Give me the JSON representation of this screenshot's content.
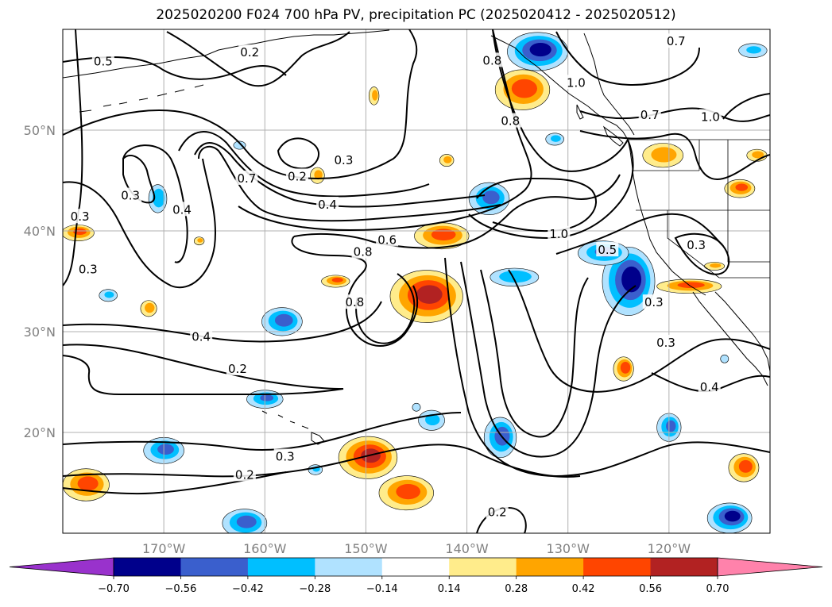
{
  "title": "2025020200 F024 700 hPa PV, precipitation PC (2025020412 - 2025020512)",
  "map": {
    "lon_range": [
      -180,
      -110
    ],
    "lat_range": [
      10,
      60
    ],
    "lon_ticks": [
      {
        "lon": -170,
        "label": "170°W"
      },
      {
        "lon": -160,
        "label": "160°W"
      },
      {
        "lon": -150,
        "label": "150°W"
      },
      {
        "lon": -140,
        "label": "140°W"
      },
      {
        "lon": -130,
        "label": "130°W"
      },
      {
        "lon": -120,
        "label": "120°W"
      }
    ],
    "lat_ticks": [
      {
        "lat": 20,
        "label": "20°N"
      },
      {
        "lat": 30,
        "label": "30°N"
      },
      {
        "lat": 40,
        "label": "40°N"
      },
      {
        "lat": 50,
        "label": "50°N"
      }
    ],
    "grid": true
  },
  "contour_labels": [
    {
      "text": "0.5",
      "lon": -176.0,
      "lat": 56.8
    },
    {
      "text": "0.2",
      "lon": -161.5,
      "lat": 57.7
    },
    {
      "text": "0.3",
      "lon": -173.3,
      "lat": 43.5
    },
    {
      "text": "0.3",
      "lon": -178.3,
      "lat": 41.4
    },
    {
      "text": "0.3",
      "lon": -177.5,
      "lat": 36.2
    },
    {
      "text": "0.7",
      "lon": -161.8,
      "lat": 45.2
    },
    {
      "text": "0.4",
      "lon": -168.2,
      "lat": 42.1
    },
    {
      "text": "0.2",
      "lon": -156.8,
      "lat": 45.4
    },
    {
      "text": "0.3",
      "lon": -152.2,
      "lat": 47.0
    },
    {
      "text": "0.4",
      "lon": -153.8,
      "lat": 42.6
    },
    {
      "text": "0.6",
      "lon": -147.9,
      "lat": 39.1
    },
    {
      "text": "0.8",
      "lon": -150.3,
      "lat": 37.9
    },
    {
      "text": "0.8",
      "lon": -151.1,
      "lat": 32.9
    },
    {
      "text": "0.8",
      "lon": -137.5,
      "lat": 56.9
    },
    {
      "text": "0.8",
      "lon": -135.7,
      "lat": 50.9
    },
    {
      "text": "0.7",
      "lon": -119.3,
      "lat": 58.8
    },
    {
      "text": "1.0",
      "lon": -129.2,
      "lat": 54.7
    },
    {
      "text": "0.7",
      "lon": -121.9,
      "lat": 51.5
    },
    {
      "text": "1.0",
      "lon": -115.9,
      "lat": 51.3
    },
    {
      "text": "1.0",
      "lon": -130.9,
      "lat": 39.7
    },
    {
      "text": "0.5",
      "lon": -126.1,
      "lat": 38.1
    },
    {
      "text": "0.3",
      "lon": -117.3,
      "lat": 38.6
    },
    {
      "text": "0.3",
      "lon": -121.5,
      "lat": 32.9
    },
    {
      "text": "0.4",
      "lon": -166.3,
      "lat": 29.5
    },
    {
      "text": "0.2",
      "lon": -162.7,
      "lat": 26.3
    },
    {
      "text": "0.3",
      "lon": -158.0,
      "lat": 17.6
    },
    {
      "text": "0.3",
      "lon": -120.3,
      "lat": 28.9
    },
    {
      "text": "0.4",
      "lon": -116.0,
      "lat": 24.5
    },
    {
      "text": "0.2",
      "lon": -162.0,
      "lat": 15.8
    },
    {
      "text": "0.2",
      "lon": -137.0,
      "lat": 12.1
    }
  ],
  "colorbar": {
    "levels": [
      -0.7,
      -0.56,
      -0.42,
      -0.28,
      -0.14,
      0.14,
      0.28,
      0.42,
      0.56,
      0.7
    ],
    "tick_labels": [
      "−0.70",
      "−0.56",
      "−0.42",
      "−0.28",
      "−0.14",
      "0.14",
      "0.28",
      "0.42",
      "0.56",
      "0.70"
    ],
    "colors": [
      "#9932cc",
      "#00008b",
      "#3a5fcd",
      "#00bfff",
      "#b0e2ff",
      "#ffffff",
      "#ffec8b",
      "#ffa500",
      "#ff4500",
      "#b22222",
      "#ff82ab"
    ],
    "extend": "both"
  },
  "precip_blobs": [
    {
      "lon": -144.0,
      "lat": 33.5,
      "rlon": 3.6,
      "rlat": 2.6,
      "v": 0.62
    },
    {
      "lon": -142.5,
      "lat": 39.5,
      "rlon": 2.7,
      "rlat": 1.3,
      "v": 0.48
    },
    {
      "lon": -134.5,
      "lat": 54.0,
      "rlon": 2.7,
      "rlat": 2.0,
      "v": 0.5
    },
    {
      "lon": -149.8,
      "lat": 17.5,
      "rlon": 2.9,
      "rlat": 2.1,
      "v": 0.6
    },
    {
      "lon": -146.0,
      "lat": 14.0,
      "rlon": 2.7,
      "rlat": 1.7,
      "v": 0.48
    },
    {
      "lon": -177.7,
      "lat": 14.8,
      "rlon": 2.3,
      "rlat": 1.6,
      "v": 0.48
    },
    {
      "lon": -178.5,
      "lat": 39.8,
      "rlon": 1.6,
      "rlat": 0.8,
      "v": 0.45
    },
    {
      "lon": -118.0,
      "lat": 34.5,
      "rlon": 3.2,
      "rlat": 0.7,
      "v": 0.46
    },
    {
      "lon": -112.6,
      "lat": 16.5,
      "rlon": 1.5,
      "rlat": 1.4,
      "v": 0.48
    },
    {
      "lon": -113.0,
      "lat": 44.2,
      "rlon": 1.5,
      "rlat": 0.9,
      "v": 0.45
    },
    {
      "lon": -124.5,
      "lat": 26.3,
      "rlon": 1.0,
      "rlat": 1.2,
      "v": 0.52
    },
    {
      "lon": -153.0,
      "lat": 35.0,
      "rlon": 1.4,
      "rlat": 0.6,
      "v": 0.44
    },
    {
      "lon": -171.5,
      "lat": 32.3,
      "rlon": 0.8,
      "rlat": 0.8,
      "v": 0.34
    },
    {
      "lon": -154.8,
      "lat": 45.5,
      "rlon": 0.7,
      "rlat": 0.8,
      "v": 0.32
    },
    {
      "lon": -149.2,
      "lat": 53.4,
      "rlon": 0.5,
      "rlat": 0.9,
      "v": 0.32
    },
    {
      "lon": -142.0,
      "lat": 47.0,
      "rlon": 0.7,
      "rlat": 0.6,
      "v": 0.32
    },
    {
      "lon": -166.5,
      "lat": 39.0,
      "rlon": 0.5,
      "rlat": 0.4,
      "v": 0.3
    },
    {
      "lon": -120.6,
      "lat": 47.5,
      "rlon": 2.0,
      "rlat": 1.2,
      "v": 0.36
    },
    {
      "lon": -111.3,
      "lat": 47.5,
      "rlon": 1.0,
      "rlat": 0.6,
      "v": 0.32
    },
    {
      "lon": -115.5,
      "lat": 36.5,
      "rlon": 1.0,
      "rlat": 0.4,
      "v": 0.3
    },
    {
      "lon": -124.0,
      "lat": 35.0,
      "rlon": 2.6,
      "rlat": 3.4,
      "v": -0.64
    },
    {
      "lon": -126.5,
      "lat": 37.8,
      "rlon": 2.5,
      "rlat": 1.2,
      "v": -0.45
    },
    {
      "lon": -137.8,
      "lat": 43.2,
      "rlon": 2.0,
      "rlat": 1.6,
      "v": -0.46
    },
    {
      "lon": -133.0,
      "lat": 57.8,
      "rlon": 3.0,
      "rlat": 1.9,
      "v": -0.62
    },
    {
      "lon": -114.0,
      "lat": 11.5,
      "rlon": 2.2,
      "rlat": 1.5,
      "v": -0.62
    },
    {
      "lon": -162.0,
      "lat": 11.0,
      "rlon": 2.2,
      "rlat": 1.4,
      "v": -0.48
    },
    {
      "lon": -136.7,
      "lat": 19.5,
      "rlon": 1.6,
      "rlat": 2.0,
      "v": -0.5
    },
    {
      "lon": -120.0,
      "lat": 20.5,
      "rlon": 1.2,
      "rlat": 1.4,
      "v": -0.45
    },
    {
      "lon": -175.5,
      "lat": 33.6,
      "rlon": 0.9,
      "rlat": 0.6,
      "v": -0.28
    },
    {
      "lon": -158.3,
      "lat": 31.0,
      "rlon": 2.0,
      "rlat": 1.4,
      "v": -0.48
    },
    {
      "lon": -170.0,
      "lat": 18.2,
      "rlon": 2.0,
      "rlat": 1.3,
      "v": -0.45
    },
    {
      "lon": -160.0,
      "lat": 23.3,
      "rlon": 1.8,
      "rlat": 0.9,
      "v": -0.42
    },
    {
      "lon": -135.3,
      "lat": 35.4,
      "rlon": 2.4,
      "rlat": 0.9,
      "v": -0.4
    },
    {
      "lon": -170.6,
      "lat": 43.2,
      "rlon": 0.9,
      "rlat": 1.4,
      "v": -0.4
    },
    {
      "lon": -143.5,
      "lat": 21.2,
      "rlon": 1.3,
      "rlat": 1.0,
      "v": -0.3
    },
    {
      "lon": -162.5,
      "lat": 48.5,
      "rlon": 0.6,
      "rlat": 0.4,
      "v": -0.26
    },
    {
      "lon": -111.7,
      "lat": 57.9,
      "rlon": 1.4,
      "rlat": 0.7,
      "v": -0.28
    },
    {
      "lon": -155.0,
      "lat": 16.3,
      "rlon": 0.7,
      "rlat": 0.5,
      "v": -0.28
    },
    {
      "lon": -131.3,
      "lat": 49.1,
      "rlon": 0.9,
      "rlat": 0.6,
      "v": -0.3
    },
    {
      "lon": -145.0,
      "lat": 22.5,
      "rlon": 0.4,
      "rlat": 0.4,
      "v": -0.22
    },
    {
      "lon": -114.5,
      "lat": 27.3,
      "rlon": 0.4,
      "rlat": 0.4,
      "v": -0.2
    }
  ]
}
